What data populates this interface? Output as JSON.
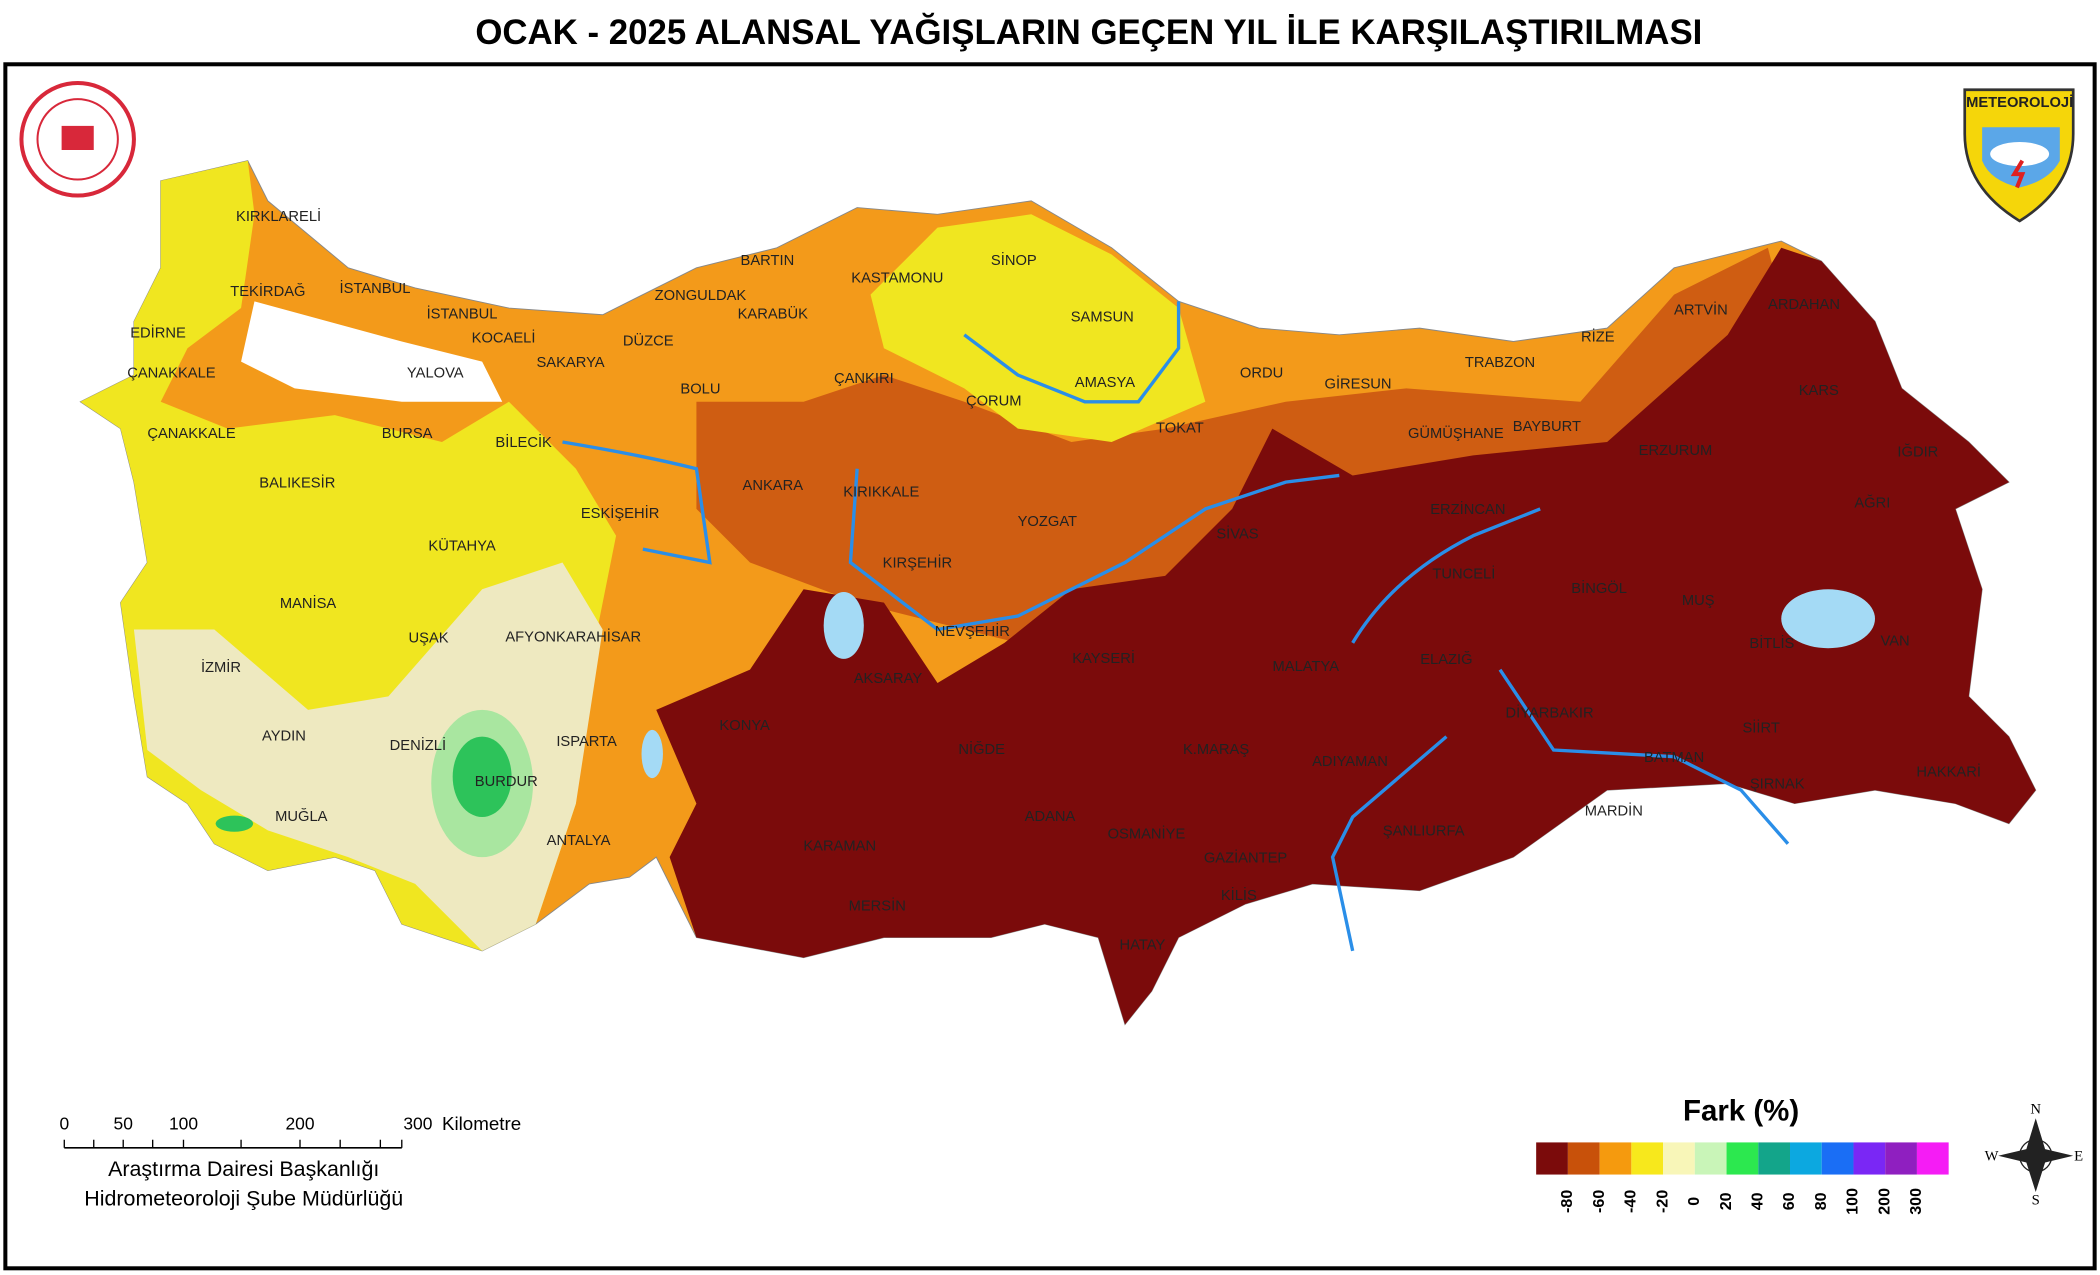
{
  "header": {
    "title": "OCAK - 2025 ALANSAL YAĞIŞLARIN GEÇEN YIL İLE KARŞILAŞTIRILMASI"
  },
  "logo": {
    "text": "METEOROLOJİ"
  },
  "map": {
    "provinces": [
      "KIRKLARELİ",
      "TEKİRDAĞ",
      "İSTANBUL",
      "EDİRNE",
      "ÇANAKKALE",
      "ÇANAKKALE",
      "İSTANBUL",
      "KOCAELİ",
      "YALOVA",
      "SAKARYA",
      "ZONGULDAK",
      "BARTIN",
      "KARABÜK",
      "KASTAMONU",
      "SİNOP",
      "SAMSUN",
      "DÜZCE",
      "BOLU",
      "ÇANKIRI",
      "ÇORUM",
      "AMASYA",
      "TOKAT",
      "ORDU",
      "GİRESUN",
      "TRABZON",
      "RİZE",
      "ARTVİN",
      "ARDAHAN",
      "KARS",
      "IĞDIR",
      "AĞRI",
      "ERZURUM",
      "BAYBURT",
      "GÜMÜŞHANE",
      "BURSA",
      "BİLECİK",
      "BALIKESİR",
      "ESKİŞEHİR",
      "ANKARA",
      "KIRIKKALE",
      "YOZGAT",
      "SİVAS",
      "ERZİNCAN",
      "KÜTAHYA",
      "KIRŞEHİR",
      "TUNCELİ",
      "BİNGÖL",
      "MUŞ",
      "MANİSA",
      "UŞAK",
      "AFYONKARAHİSAR",
      "NEVŞEHİR",
      "KAYSERİ",
      "MALATYA",
      "ELAZIĞ",
      "BİTLİS",
      "VAN",
      "İZMİR",
      "AKSARAY",
      "DİYARBAKIR",
      "SİİRT",
      "AYDIN",
      "DENİZLİ",
      "ISPARTA",
      "KONYA",
      "NİĞDE",
      "K.MARAŞ",
      "ADIYAMAN",
      "BATMAN",
      "HAKKARİ",
      "ŞIRNAK",
      "BURDUR",
      "MUĞLA",
      "ADANA",
      "MARDİN",
      "ANTALYA",
      "OSMANİYE",
      "ŞANLIURFA",
      "KARAMAN",
      "GAZİANTEP",
      "KİLİS",
      "MERSİN",
      "HATAY"
    ]
  },
  "scale": {
    "ticks": [
      "0",
      "50",
      "100",
      "200",
      "300"
    ],
    "unit": "Kilometre"
  },
  "credits": [
    "Araştırma Dairesi Başkanlığı",
    "Hidrometeoroloji Şube Müdürlüğü"
  ],
  "legend": {
    "title": "Fark (%)",
    "colors": [
      "#7b0b0b",
      "#c8510a",
      "#f59a0e",
      "#f7e81c",
      "#f8f6b8",
      "#c9f5b8",
      "#2ce84f",
      "#13a58a",
      "#0ca8e0",
      "#1a6ef5",
      "#7a27f5",
      "#8f1fc0",
      "#f51cf5"
    ],
    "ticks": [
      "-80",
      "-60",
      "-40",
      "-20",
      "0",
      "20",
      "40",
      "60",
      "80",
      "100",
      "200",
      "300"
    ]
  },
  "compass": {
    "n": "N",
    "e": "E",
    "s": "S",
    "w": "W"
  }
}
